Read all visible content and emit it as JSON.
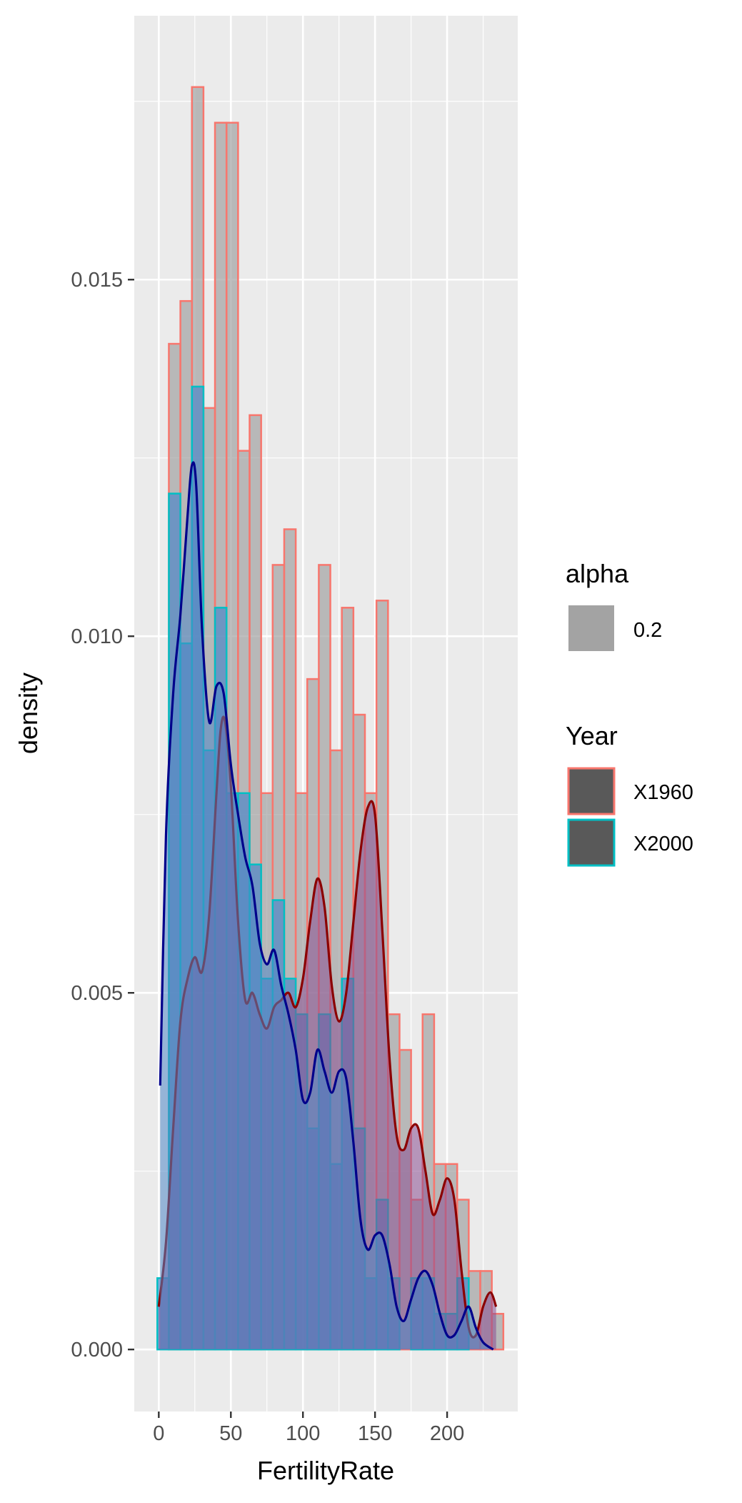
{
  "chart_data": {
    "type": "histogram",
    "xlabel": "FertilityRate",
    "ylabel": "density",
    "xlim": [
      -17,
      249
    ],
    "ylim": [
      -0.00087,
      0.0187
    ],
    "x_ticks": [
      0,
      50,
      100,
      150,
      200
    ],
    "x_tick_labels": [
      "0",
      "50",
      "100",
      "150",
      "200"
    ],
    "y_ticks": [
      0.0,
      0.005,
      0.01,
      0.015
    ],
    "y_tick_labels": [
      "0.000",
      "0.005",
      "0.010",
      "0.015"
    ],
    "grid": true,
    "background": "#ebebeb",
    "legend_position": "right",
    "legend": {
      "alpha": {
        "title": "alpha",
        "items": [
          {
            "label": "0.2",
            "color": "#a3a3a3"
          }
        ]
      },
      "year": {
        "title": "Year",
        "items": [
          {
            "label": "X1960",
            "border": "#f8766d",
            "fill": "#595959"
          },
          {
            "label": "X2000",
            "border": "#00bfc4",
            "fill": "#595959"
          }
        ]
      }
    },
    "series": [
      {
        "name": "X1960",
        "kind": "histogram",
        "border_color": "#f8766d",
        "fill_color": "#a3a3a3",
        "bin_width": 8,
        "bin_start": -1,
        "values": [
          0.0,
          0.0141,
          0.0147,
          0.0177,
          0.0132,
          0.0172,
          0.0172,
          0.0126,
          0.0131,
          0.0078,
          0.011,
          0.0115,
          0.0078,
          0.0094,
          0.011,
          0.0084,
          0.0104,
          0.0089,
          0.0078,
          0.0105,
          0.0047,
          0.0042,
          0.0021,
          0.0047,
          0.0026,
          0.0026,
          0.0021,
          0.0011,
          0.0011,
          0.0005
        ]
      },
      {
        "name": "X2000",
        "kind": "histogram",
        "border_color": "#00bfc4",
        "fill_color": "#4f86c6",
        "bin_width": 8,
        "bin_start": -1,
        "values": [
          0.001,
          0.012,
          0.0099,
          0.0135,
          0.0084,
          0.0104,
          0.0078,
          0.0078,
          0.0068,
          0.0052,
          0.0063,
          0.0052,
          0.0047,
          0.0031,
          0.0047,
          0.0026,
          0.0052,
          0.0031,
          0.001,
          0.0021,
          0.001,
          0.0,
          0.001,
          0.001,
          0.0005,
          0.0005,
          0.001,
          0.0,
          0.0,
          0.0
        ]
      },
      {
        "name": "X1960",
        "kind": "density",
        "line_color": "#8b0000",
        "fill_color": "#8a4f91",
        "x": [
          0,
          5,
          10,
          15,
          20,
          25,
          30,
          35,
          40,
          43,
          46,
          50,
          55,
          60,
          65,
          70,
          75,
          80,
          85,
          90,
          95,
          100,
          105,
          110,
          115,
          120,
          125,
          130,
          135,
          140,
          145,
          150,
          155,
          160,
          165,
          170,
          175,
          180,
          185,
          190,
          195,
          200,
          205,
          210,
          215,
          220,
          225,
          230,
          234
        ],
        "y": [
          0.0006,
          0.0015,
          0.0031,
          0.0046,
          0.0052,
          0.0055,
          0.0053,
          0.0061,
          0.0078,
          0.0087,
          0.0088,
          0.0079,
          0.006,
          0.0049,
          0.005,
          0.0047,
          0.0045,
          0.0048,
          0.0049,
          0.005,
          0.0048,
          0.0052,
          0.006,
          0.0066,
          0.0062,
          0.0051,
          0.0046,
          0.005,
          0.006,
          0.007,
          0.0076,
          0.0075,
          0.0059,
          0.0041,
          0.003,
          0.0028,
          0.0031,
          0.0031,
          0.0025,
          0.0019,
          0.0021,
          0.0024,
          0.0021,
          0.0011,
          0.0003,
          0.0002,
          0.0006,
          0.0008,
          0.0006
        ]
      },
      {
        "name": "X2000",
        "kind": "density",
        "line_color": "#00008b",
        "fill_color": "#4f86c6",
        "x": [
          1,
          5,
          10,
          15,
          20,
          23,
          26,
          30,
          35,
          40,
          45,
          50,
          55,
          60,
          65,
          70,
          75,
          80,
          85,
          90,
          95,
          100,
          105,
          110,
          115,
          120,
          125,
          130,
          135,
          140,
          145,
          150,
          155,
          160,
          165,
          170,
          175,
          180,
          185,
          190,
          195,
          200,
          205,
          210,
          215,
          220,
          225,
          232
        ],
        "y": [
          0.0037,
          0.0072,
          0.0092,
          0.0103,
          0.0117,
          0.0124,
          0.0121,
          0.0101,
          0.0088,
          0.0093,
          0.0092,
          0.0082,
          0.0075,
          0.0069,
          0.0065,
          0.0057,
          0.0054,
          0.0056,
          0.0051,
          0.0047,
          0.0042,
          0.0035,
          0.0036,
          0.0042,
          0.0039,
          0.0036,
          0.0039,
          0.0038,
          0.0029,
          0.0018,
          0.0014,
          0.0016,
          0.0016,
          0.0012,
          0.0006,
          0.0004,
          0.0007,
          0.001,
          0.0011,
          0.0009,
          0.0005,
          0.0002,
          0.0002,
          0.0004,
          0.0006,
          0.0003,
          0.0001,
          0.0
        ]
      }
    ]
  }
}
